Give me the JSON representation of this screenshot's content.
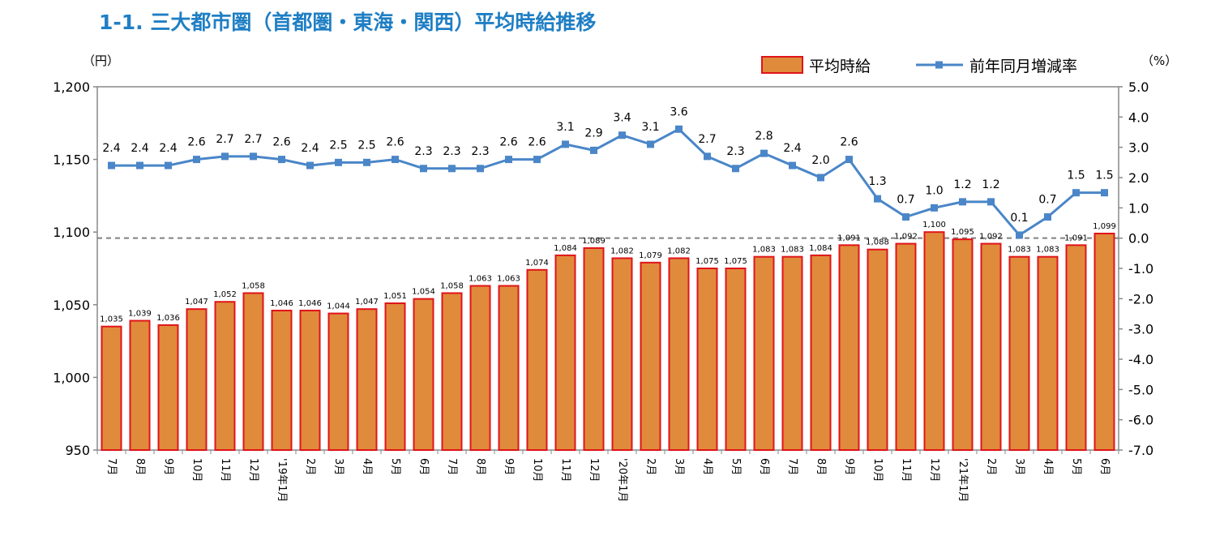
{
  "page_title": "1-1. 三大都市圏（首都圏・東海・関西）平均時給推移",
  "chart_data": {
    "type": "bar+line",
    "categories": [
      "7月",
      "8月",
      "9月",
      "10月",
      "11月",
      "12月",
      "'19年1月",
      "2月",
      "3月",
      "4月",
      "5月",
      "6月",
      "7月",
      "8月",
      "9月",
      "10月",
      "11月",
      "12月",
      "'20年1月",
      "2月",
      "3月",
      "4月",
      "5月",
      "6月",
      "7月",
      "8月",
      "9月",
      "10月",
      "11月",
      "12月",
      "'21年1月",
      "2月",
      "3月",
      "4月",
      "5月",
      "6月"
    ],
    "series": [
      {
        "name": "平均時給",
        "type": "bar",
        "axis": "left",
        "color": "#e08a3c",
        "edge_color": "#e0141a",
        "values": [
          1035,
          1039,
          1036,
          1047,
          1052,
          1058,
          1046,
          1046,
          1044,
          1047,
          1051,
          1054,
          1058,
          1063,
          1063,
          1074,
          1084,
          1089,
          1082,
          1079,
          1082,
          1075,
          1075,
          1083,
          1083,
          1084,
          1091,
          1088,
          1092,
          1100,
          1095,
          1092,
          1083,
          1083,
          1091,
          1099
        ],
        "labels": [
          "1,035",
          "1,039",
          "1,036",
          "1,047",
          "1,052",
          "1,058",
          "1,046",
          "1,046",
          "1,044",
          "1,047",
          "1,051",
          "1,054",
          "1,058",
          "1,063",
          "1,063",
          "1,074",
          "1,084",
          "1,089",
          "1,082",
          "1,079",
          "1,082",
          "1,075",
          "1,075",
          "1,083",
          "1,083",
          "1,084",
          "1,091",
          "1,088",
          "1,092",
          "1,100",
          "1,095",
          "1,092",
          "1,083",
          "1,083",
          "1,091",
          "1,099"
        ]
      },
      {
        "name": "前年同月増減率",
        "type": "line",
        "axis": "right",
        "color": "#4a86c8",
        "values": [
          2.4,
          2.4,
          2.4,
          2.6,
          2.7,
          2.7,
          2.6,
          2.4,
          2.5,
          2.5,
          2.6,
          2.3,
          2.3,
          2.3,
          2.6,
          2.6,
          3.1,
          2.9,
          3.4,
          3.1,
          3.6,
          2.7,
          2.3,
          2.8,
          2.4,
          2.0,
          2.6,
          1.3,
          0.7,
          1.0,
          1.2,
          1.2,
          0.1,
          0.7,
          1.5,
          1.5
        ],
        "labels": [
          "2.4",
          "2.4",
          "2.4",
          "2.6",
          "2.7",
          "2.7",
          "2.6",
          "2.4",
          "2.5",
          "2.5",
          "2.6",
          "2.3",
          "2.3",
          "2.3",
          "2.6",
          "2.6",
          "3.1",
          "2.9",
          "3.4",
          "3.1",
          "3.6",
          "2.7",
          "2.3",
          "2.8",
          "2.4",
          "2.0",
          "2.6",
          "1.3",
          "0.7",
          "1.0",
          "1.2",
          "1.2",
          "0.1",
          "0.7",
          "1.5",
          "1.5"
        ]
      }
    ],
    "y_left": {
      "unit_label": "（円）",
      "min": 950,
      "max": 1200,
      "ticks": [
        950,
        1000,
        1050,
        1100,
        1150,
        1200
      ],
      "tick_labels": [
        "950",
        "1,000",
        "1,050",
        "1,100",
        "1,150",
        "1,200"
      ]
    },
    "y_right": {
      "unit_label": "（%）",
      "min": -7.0,
      "max": 5.0,
      "ticks": [
        -7,
        -6,
        -5,
        -4,
        -3,
        -2,
        -1,
        0,
        1,
        2,
        3,
        4,
        5
      ],
      "tick_labels": [
        "-7.0",
        "-6.0",
        "-5.0",
        "-4.0",
        "-3.0",
        "-2.0",
        "-1.0",
        "0.0",
        "1.0",
        "2.0",
        "3.0",
        "4.0",
        "5.0"
      ],
      "reference_line": 0.0
    },
    "legend": {
      "position": "top-right"
    },
    "grid": false
  }
}
